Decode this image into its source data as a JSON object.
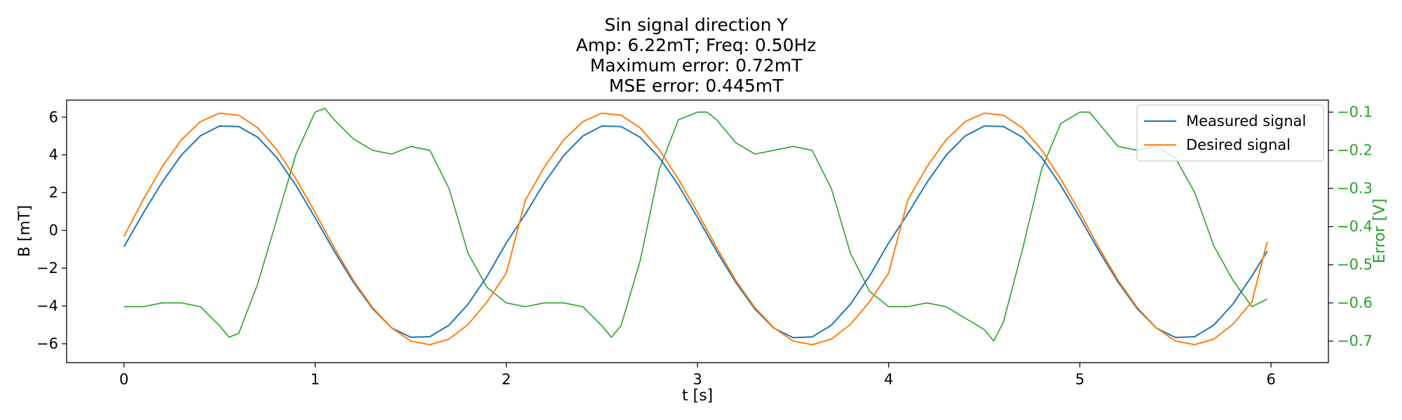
{
  "chart_data": {
    "type": "line",
    "title_lines": [
      "Sin signal direction Y",
      "Amp: 6.22mT; Freq: 0.50Hz",
      "Maximum error: 0.72mT",
      "MSE error: 0.445mT"
    ],
    "xlabel": "t [s]",
    "ylabel": "B [mT]",
    "y2label": "Error [V]",
    "xlim": [
      -0.3,
      6.3
    ],
    "ylim": [
      -7.0,
      6.9
    ],
    "y2lim": [
      -0.7565,
      -0.0685
    ],
    "x_ticks": [
      0,
      1,
      2,
      3,
      4,
      5,
      6
    ],
    "y_ticks": [
      6,
      4,
      2,
      0,
      -2,
      -4,
      -6
    ],
    "y2_ticks": [
      -0.1,
      -0.2,
      -0.3,
      -0.4,
      -0.5,
      -0.6,
      -0.7
    ],
    "x_tick_labels": [
      "0",
      "1",
      "2",
      "3",
      "4",
      "5",
      "6"
    ],
    "y_tick_labels": [
      "6",
      "4",
      "2",
      "0",
      "−2",
      "−4",
      "−6"
    ],
    "y2_tick_labels": [
      "−0.1",
      "−0.2",
      "−0.3",
      "−0.4",
      "−0.5",
      "−0.6",
      "−0.7"
    ],
    "grid": false,
    "legend_position": "top-right",
    "colors": {
      "measured": "#1f77b4",
      "desired": "#ff7f0e",
      "error": "#2ca02c"
    },
    "series": [
      {
        "name": "Measured signal",
        "axis": "left",
        "x": [
          0,
          0.1,
          0.2,
          0.3,
          0.4,
          0.5,
          0.6,
          0.7,
          0.8,
          0.9,
          1.0,
          1.1,
          1.2,
          1.3,
          1.4,
          1.5,
          1.6,
          1.7,
          1.8,
          1.9,
          2.0,
          2.1,
          2.2,
          2.3,
          2.4,
          2.5,
          2.6,
          2.7,
          2.8,
          2.9,
          3.0,
          3.1,
          3.2,
          3.3,
          3.4,
          3.5,
          3.6,
          3.7,
          3.8,
          3.9,
          4.0,
          4.1,
          4.2,
          4.3,
          4.4,
          4.5,
          4.6,
          4.7,
          4.8,
          4.9,
          5.0,
          5.1,
          5.2,
          5.3,
          5.4,
          5.5,
          5.6,
          5.7,
          5.8,
          5.9,
          5.98
        ],
        "y": [
          -0.87,
          0.9,
          2.56,
          3.98,
          5.01,
          5.53,
          5.5,
          4.93,
          3.85,
          2.38,
          0.67,
          -1.1,
          -2.74,
          -4.14,
          -5.16,
          -5.66,
          -5.63,
          -5.02,
          -3.91,
          -2.42,
          -0.66,
          0.87,
          2.53,
          3.96,
          5.0,
          5.53,
          5.5,
          4.93,
          3.86,
          2.4,
          0.69,
          -1.1,
          -2.75,
          -4.16,
          -5.18,
          -5.68,
          -5.64,
          -5.02,
          -3.91,
          -2.41,
          -0.66,
          0.88,
          2.54,
          3.97,
          5.0,
          5.53,
          5.5,
          4.93,
          3.86,
          2.39,
          0.68,
          -1.09,
          -2.74,
          -4.15,
          -5.17,
          -5.67,
          -5.63,
          -5.02,
          -3.91,
          -2.41,
          -1.1
        ]
      },
      {
        "name": "Desired signal",
        "axis": "left",
        "x": [
          0,
          0.1,
          0.2,
          0.3,
          0.4,
          0.5,
          0.6,
          0.7,
          0.8,
          0.9,
          1.0,
          1.1,
          1.2,
          1.3,
          1.4,
          1.5,
          1.6,
          1.7,
          1.8,
          1.9,
          2.0,
          2.1,
          2.2,
          2.3,
          2.4,
          2.5,
          2.6,
          2.7,
          2.8,
          2.9,
          3.0,
          3.1,
          3.2,
          3.3,
          3.4,
          3.5,
          3.6,
          3.7,
          3.8,
          3.9,
          4.0,
          4.1,
          4.2,
          4.3,
          4.4,
          4.5,
          4.6,
          4.7,
          4.8,
          4.9,
          5.0,
          5.1,
          5.2,
          5.3,
          5.4,
          5.5,
          5.6,
          5.7,
          5.8,
          5.9,
          5.98
        ],
        "y": [
          -0.32,
          1.61,
          3.37,
          4.79,
          5.76,
          6.21,
          6.1,
          5.43,
          4.27,
          2.72,
          0.95,
          -0.91,
          -2.64,
          -4.08,
          -5.16,
          -5.86,
          -6.05,
          -5.76,
          -4.98,
          -3.78,
          -2.26,
          1.61,
          3.37,
          4.79,
          5.76,
          6.21,
          6.1,
          5.43,
          4.27,
          2.72,
          0.95,
          -0.91,
          -2.64,
          -4.08,
          -5.16,
          -5.86,
          -6.05,
          -5.76,
          -4.98,
          -3.78,
          -2.26,
          1.61,
          3.37,
          4.79,
          5.76,
          6.21,
          6.1,
          5.43,
          4.27,
          2.72,
          0.95,
          -0.91,
          -2.64,
          -4.08,
          -5.16,
          -5.86,
          -6.05,
          -5.76,
          -4.98,
          -3.78,
          -0.6
        ]
      },
      {
        "name": "Error",
        "axis": "right",
        "x": [
          0,
          0.1,
          0.2,
          0.3,
          0.4,
          0.5,
          0.55,
          0.6,
          0.7,
          0.8,
          0.9,
          1.0,
          1.05,
          1.1,
          1.2,
          1.3,
          1.4,
          1.5,
          1.6,
          1.7,
          1.8,
          1.9,
          2.0,
          2.1,
          2.2,
          2.3,
          2.4,
          2.5,
          2.55,
          2.6,
          2.7,
          2.8,
          2.9,
          3.0,
          3.05,
          3.1,
          3.2,
          3.3,
          3.4,
          3.5,
          3.6,
          3.7,
          3.8,
          3.9,
          4.0,
          4.1,
          4.2,
          4.3,
          4.4,
          4.5,
          4.55,
          4.6,
          4.7,
          4.8,
          4.9,
          5.0,
          5.05,
          5.1,
          5.2,
          5.3,
          5.4,
          5.5,
          5.6,
          5.7,
          5.8,
          5.9,
          5.98
        ],
        "y": [
          -0.61,
          -0.61,
          -0.6,
          -0.6,
          -0.61,
          -0.66,
          -0.69,
          -0.68,
          -0.55,
          -0.38,
          -0.21,
          -0.1,
          -0.09,
          -0.12,
          -0.17,
          -0.2,
          -0.21,
          -0.19,
          -0.2,
          -0.3,
          -0.47,
          -0.56,
          -0.6,
          -0.61,
          -0.6,
          -0.6,
          -0.61,
          -0.66,
          -0.69,
          -0.66,
          -0.49,
          -0.25,
          -0.12,
          -0.1,
          -0.1,
          -0.12,
          -0.18,
          -0.21,
          -0.2,
          -0.19,
          -0.2,
          -0.3,
          -0.47,
          -0.57,
          -0.61,
          -0.61,
          -0.6,
          -0.61,
          -0.64,
          -0.67,
          -0.7,
          -0.65,
          -0.46,
          -0.25,
          -0.13,
          -0.1,
          -0.1,
          -0.13,
          -0.19,
          -0.2,
          -0.19,
          -0.22,
          -0.31,
          -0.45,
          -0.54,
          -0.61,
          -0.59
        ]
      }
    ]
  }
}
